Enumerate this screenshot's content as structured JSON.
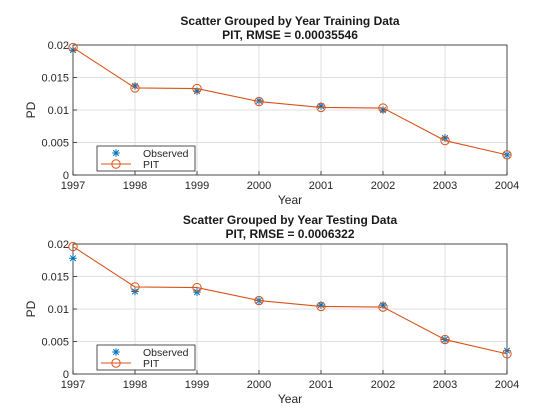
{
  "chart_data": [
    {
      "type": "line",
      "title": "Scatter Grouped by Year Training Data",
      "subtitle": "PIT, RMSE = 0.00035546",
      "xlabel": "Year",
      "ylabel": "PD",
      "xlim": [
        1997,
        2004
      ],
      "ylim": [
        0,
        0.02
      ],
      "xticks": [
        "1997",
        "1998",
        "1999",
        "2000",
        "2001",
        "2002",
        "2003",
        "2004"
      ],
      "yticks": [
        "0",
        "0.005",
        "0.01",
        "0.015",
        "0.02"
      ],
      "grid": true,
      "legend_location": "bottom-left",
      "x": [
        1997,
        1998,
        1999,
        2000,
        2001,
        2002,
        2003,
        2004
      ],
      "series": [
        {
          "name": "Observed",
          "marker": "star",
          "color": "#0072BD",
          "values": [
            0.0192,
            0.0137,
            0.0129,
            0.0114,
            0.0106,
            0.01,
            0.0057,
            0.0031
          ]
        },
        {
          "name": "PIT",
          "marker": "circle-line",
          "color": "#D95319",
          "values": [
            0.0196,
            0.0134,
            0.0133,
            0.0113,
            0.0104,
            0.0103,
            0.0053,
            0.0031
          ]
        }
      ]
    },
    {
      "type": "line",
      "title": "Scatter Grouped by Year Testing Data",
      "subtitle": "PIT, RMSE = 0.0006322",
      "xlabel": "Year",
      "ylabel": "PD",
      "xlim": [
        1997,
        2004
      ],
      "ylim": [
        0,
        0.02
      ],
      "xticks": [
        "1997",
        "1998",
        "1999",
        "2000",
        "2001",
        "2002",
        "2003",
        "2004"
      ],
      "yticks": [
        "0",
        "0.005",
        "0.01",
        "0.015",
        "0.02"
      ],
      "grid": true,
      "legend_location": "bottom-left",
      "x": [
        1997,
        1998,
        1999,
        2000,
        2001,
        2002,
        2003,
        2004
      ],
      "series": [
        {
          "name": "Observed",
          "marker": "star",
          "color": "#0072BD",
          "values": [
            0.0178,
            0.0127,
            0.0126,
            0.0113,
            0.0106,
            0.0106,
            0.0053,
            0.0036
          ]
        },
        {
          "name": "PIT",
          "marker": "circle-line",
          "color": "#D95319",
          "values": [
            0.0196,
            0.0134,
            0.0133,
            0.0113,
            0.0104,
            0.0103,
            0.0053,
            0.0031
          ]
        }
      ]
    }
  ]
}
